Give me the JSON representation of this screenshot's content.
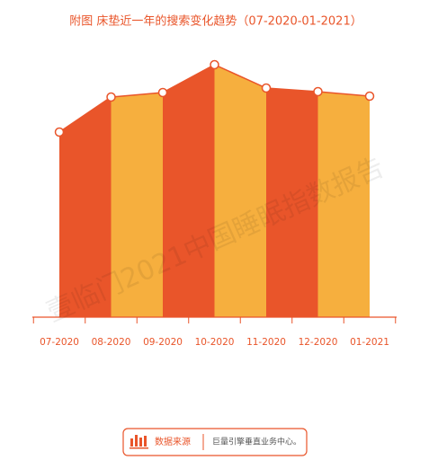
{
  "chart_data": {
    "type": "area-segments",
    "title": "附图 床垫近一年的搜索变化趋势（07-2020-01-2021）",
    "categories": [
      "07-2020",
      "08-2020",
      "09-2020",
      "10-2020",
      "11-2020",
      "12-2020",
      "01-2021"
    ],
    "values": [
      206,
      245,
      250,
      281,
      255,
      251,
      246
    ],
    "colors": [
      "#e9552a",
      "#f6af3e"
    ],
    "ylim": [
      0,
      300
    ],
    "watermark": "壹临门2021中国睡眠指数报告",
    "source_label": "数据来源",
    "source": "巨量引擎垂直业务中心。"
  }
}
